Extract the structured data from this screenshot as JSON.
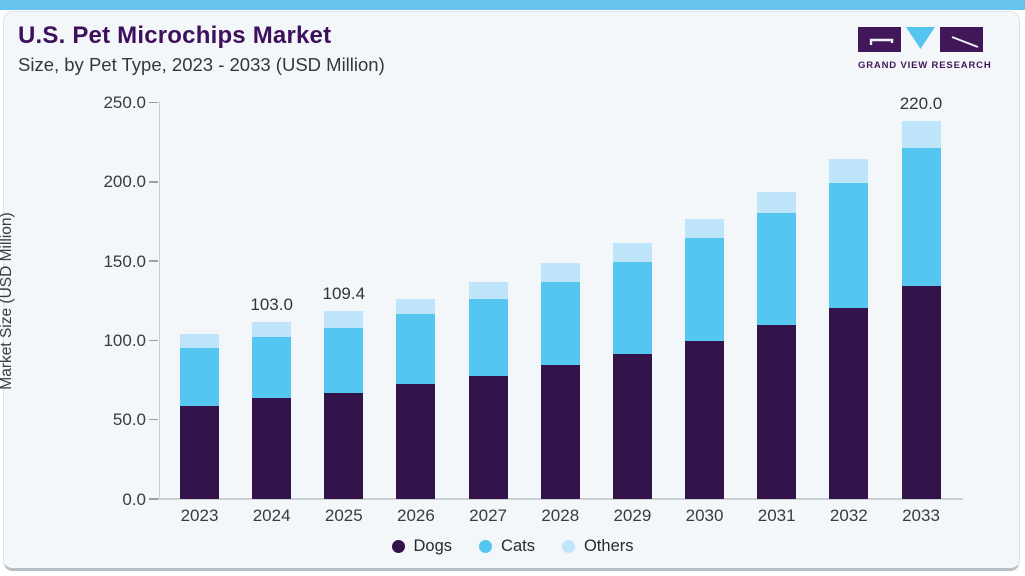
{
  "header": {
    "title": "U.S. Pet Microchips Market",
    "subtitle": "Size, by Pet Type, 2023 - 2033 (USD Million)"
  },
  "logo": {
    "brand": "GRAND VIEW RESEARCH",
    "purple": "#41175a",
    "blue": "#55c4ee"
  },
  "chart_data": {
    "type": "bar",
    "stacked": true,
    "title": "U.S. Pet Microchips Market Size, by Pet Type, 2023 - 2033 (USD Million)",
    "xlabel": "",
    "ylabel": "Market Size (USD Million)",
    "ylim": [
      0,
      250
    ],
    "ytick_labels": [
      "0.0",
      "50.0",
      "100.0",
      "150.0",
      "200.0",
      "250.0"
    ],
    "grid": false,
    "legend_position": "bottom",
    "categories": [
      "2023",
      "2024",
      "2025",
      "2026",
      "2027",
      "2028",
      "2029",
      "2030",
      "2031",
      "2032",
      "2033"
    ],
    "series": [
      {
        "name": "Dogs",
        "color": "#32144a",
        "values": [
          54.4,
          58.6,
          61.5,
          66.8,
          71.8,
          77.8,
          84.4,
          92.1,
          101.3,
          111.4,
          123.8
        ]
      },
      {
        "name": "Cats",
        "color": "#54c6f0",
        "values": [
          33.7,
          35.5,
          38.3,
          40.7,
          44.6,
          48.7,
          53.7,
          59.6,
          65.3,
          72.7,
          80.5
        ]
      },
      {
        "name": "Others",
        "color": "#bee5f9",
        "values": [
          7.8,
          8.9,
          9.6,
          8.9,
          9.7,
          10.7,
          10.7,
          11.1,
          12.2,
          13.6,
          15.7
        ]
      }
    ],
    "total_labels": {
      "2024": "103.0",
      "2025": "109.4",
      "2033": "220.0"
    }
  }
}
